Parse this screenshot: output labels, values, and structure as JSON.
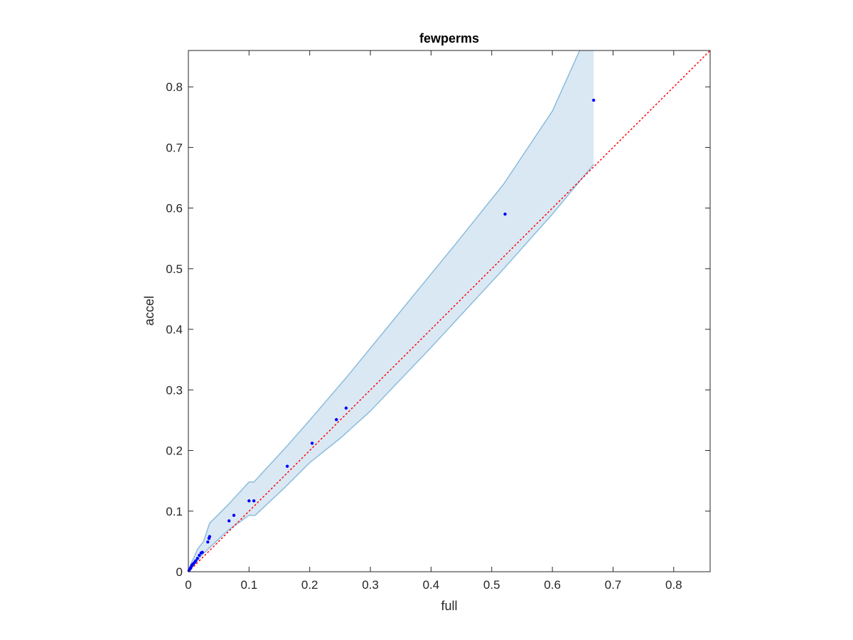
{
  "chart_data": {
    "type": "scatter",
    "title": "fewperms",
    "xlabel": "full",
    "ylabel": "accel",
    "xlim": [
      0,
      0.86
    ],
    "ylim": [
      0,
      0.86
    ],
    "xticks": [
      0,
      0.1,
      0.2,
      0.3,
      0.4,
      0.5,
      0.6,
      0.7,
      0.8
    ],
    "yticks": [
      0,
      0.1,
      0.2,
      0.3,
      0.4,
      0.5,
      0.6,
      0.7,
      0.8
    ],
    "xtick_labels": [
      "0",
      "0.1",
      "0.2",
      "0.3",
      "0.4",
      "0.5",
      "0.6",
      "0.7",
      "0.8"
    ],
    "ytick_labels": [
      "0",
      "0.1",
      "0.2",
      "0.3",
      "0.4",
      "0.5",
      "0.6",
      "0.7",
      "0.8"
    ],
    "grid": false,
    "points": [
      {
        "x": 0.001,
        "y": 0.002
      },
      {
        "x": 0.002,
        "y": 0.004
      },
      {
        "x": 0.003,
        "y": 0.005
      },
      {
        "x": 0.004,
        "y": 0.007
      },
      {
        "x": 0.005,
        "y": 0.009
      },
      {
        "x": 0.006,
        "y": 0.011
      },
      {
        "x": 0.008,
        "y": 0.013
      },
      {
        "x": 0.01,
        "y": 0.015
      },
      {
        "x": 0.012,
        "y": 0.018
      },
      {
        "x": 0.015,
        "y": 0.022
      },
      {
        "x": 0.018,
        "y": 0.027
      },
      {
        "x": 0.021,
        "y": 0.031
      },
      {
        "x": 0.023,
        "y": 0.032
      },
      {
        "x": 0.032,
        "y": 0.049
      },
      {
        "x": 0.034,
        "y": 0.055
      },
      {
        "x": 0.035,
        "y": 0.058
      },
      {
        "x": 0.067,
        "y": 0.084
      },
      {
        "x": 0.075,
        "y": 0.093
      },
      {
        "x": 0.1,
        "y": 0.117
      },
      {
        "x": 0.108,
        "y": 0.117
      },
      {
        "x": 0.163,
        "y": 0.174
      },
      {
        "x": 0.204,
        "y": 0.212
      },
      {
        "x": 0.244,
        "y": 0.251
      },
      {
        "x": 0.26,
        "y": 0.27
      },
      {
        "x": 0.522,
        "y": 0.59
      },
      {
        "x": 0.668,
        "y": 0.778
      }
    ],
    "band": {
      "upper": [
        {
          "x": 0,
          "y": 0
        },
        {
          "x": 0.005,
          "y": 0.015
        },
        {
          "x": 0.01,
          "y": 0.025
        },
        {
          "x": 0.015,
          "y": 0.037
        },
        {
          "x": 0.025,
          "y": 0.05
        },
        {
          "x": 0.035,
          "y": 0.08
        },
        {
          "x": 0.065,
          "y": 0.11
        },
        {
          "x": 0.1,
          "y": 0.148
        },
        {
          "x": 0.108,
          "y": 0.148
        },
        {
          "x": 0.165,
          "y": 0.21
        },
        {
          "x": 0.2,
          "y": 0.25
        },
        {
          "x": 0.26,
          "y": 0.32
        },
        {
          "x": 0.35,
          "y": 0.43
        },
        {
          "x": 0.44,
          "y": 0.54
        },
        {
          "x": 0.52,
          "y": 0.64
        },
        {
          "x": 0.6,
          "y": 0.76
        },
        {
          "x": 0.645,
          "y": 0.86
        },
        {
          "x": 0.668,
          "y": 0.86
        }
      ],
      "lower": [
        {
          "x": 0.668,
          "y": 0.672
        },
        {
          "x": 0.6,
          "y": 0.59
        },
        {
          "x": 0.52,
          "y": 0.5
        },
        {
          "x": 0.4,
          "y": 0.37
        },
        {
          "x": 0.3,
          "y": 0.265
        },
        {
          "x": 0.25,
          "y": 0.22
        },
        {
          "x": 0.2,
          "y": 0.18
        },
        {
          "x": 0.16,
          "y": 0.14
        },
        {
          "x": 0.11,
          "y": 0.093
        },
        {
          "x": 0.1,
          "y": 0.093
        },
        {
          "x": 0.065,
          "y": 0.068
        },
        {
          "x": 0.035,
          "y": 0.04
        },
        {
          "x": 0.02,
          "y": 0.025
        },
        {
          "x": 0.01,
          "y": 0.012
        },
        {
          "x": 0,
          "y": 0
        }
      ]
    },
    "reference_line": {
      "from": [
        0,
        0
      ],
      "to": [
        0.86,
        0.86
      ],
      "style": "dotted"
    },
    "colors": {
      "points": "#0000ff",
      "band_fill": "#dae8f4",
      "band_edge": "#8bbcdc",
      "reference_line": "#ff0000",
      "axes": "#262626"
    }
  }
}
